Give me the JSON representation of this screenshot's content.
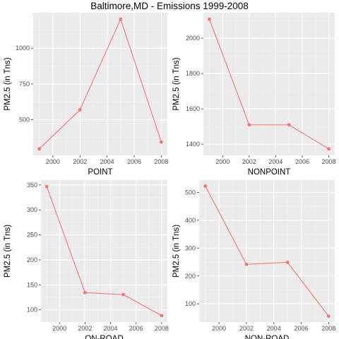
{
  "title": "Baltimore,MD - Emissions 1999-2008",
  "colors": {
    "panel_bg": "#ebebeb",
    "grid_major": "#ffffff",
    "grid_minor": "#f4f4f4",
    "series": "#f8766d",
    "tick_text": "#4d4d4d"
  },
  "chart_data": [
    {
      "type": "line",
      "title": "",
      "xlabel": "POINT",
      "ylabel": "PM2.5 (in Tns)",
      "x": [
        1999,
        2002,
        2005,
        2008
      ],
      "values": [
        296.8,
        569.3,
        1202.5,
        344.98
      ],
      "xlim": [
        1998.55,
        2008.45
      ],
      "ylim": [
        251.5,
        1247.8
      ],
      "xticks": [
        2000,
        2002,
        2004,
        2006,
        2008
      ],
      "yticks": [
        500,
        750,
        1000
      ],
      "grid": true,
      "markers": true
    },
    {
      "type": "line",
      "title": "",
      "xlabel": "NONPOINT",
      "ylabel": "PM2.5 (in Tns)",
      "x": [
        1999,
        2002,
        2005,
        2008
      ],
      "values": [
        2107.6,
        1509.5,
        1509.5,
        1373.2
      ],
      "xlim": [
        1998.55,
        2008.45
      ],
      "ylim": [
        1336.5,
        2144.3
      ],
      "xticks": [
        2000,
        2002,
        2004,
        2006,
        2008
      ],
      "yticks": [
        1400,
        1600,
        1800,
        2000
      ],
      "grid": true,
      "markers": true
    },
    {
      "type": "line",
      "title": "",
      "xlabel": "ON-ROAD",
      "ylabel": "PM2.5 (in Tns)",
      "x": [
        1999,
        2002,
        2005,
        2008
      ],
      "values": [
        346.8,
        134.3,
        130.4,
        88.3
      ],
      "xlim": [
        1998.55,
        2008.45
      ],
      "ylim": [
        75.4,
        359.7
      ],
      "xticks": [
        2000,
        2002,
        2004,
        2006,
        2008
      ],
      "yticks": [
        100,
        150,
        200,
        250,
        300,
        350
      ],
      "grid": true,
      "markers": true
    },
    {
      "type": "line",
      "title": "",
      "xlabel": "NON-ROAD",
      "ylabel": "PM2.5 (in Tns)",
      "x": [
        1999,
        2002,
        2005,
        2008
      ],
      "values": [
        522.9,
        241.8,
        248.9,
        55.8
      ],
      "xlim": [
        1998.55,
        2008.45
      ],
      "ylim": [
        34.6,
        544.2
      ],
      "xticks": [
        2000,
        2002,
        2004,
        2006,
        2008
      ],
      "yticks": [
        100,
        200,
        300,
        400,
        500
      ],
      "grid": true,
      "markers": true
    }
  ]
}
